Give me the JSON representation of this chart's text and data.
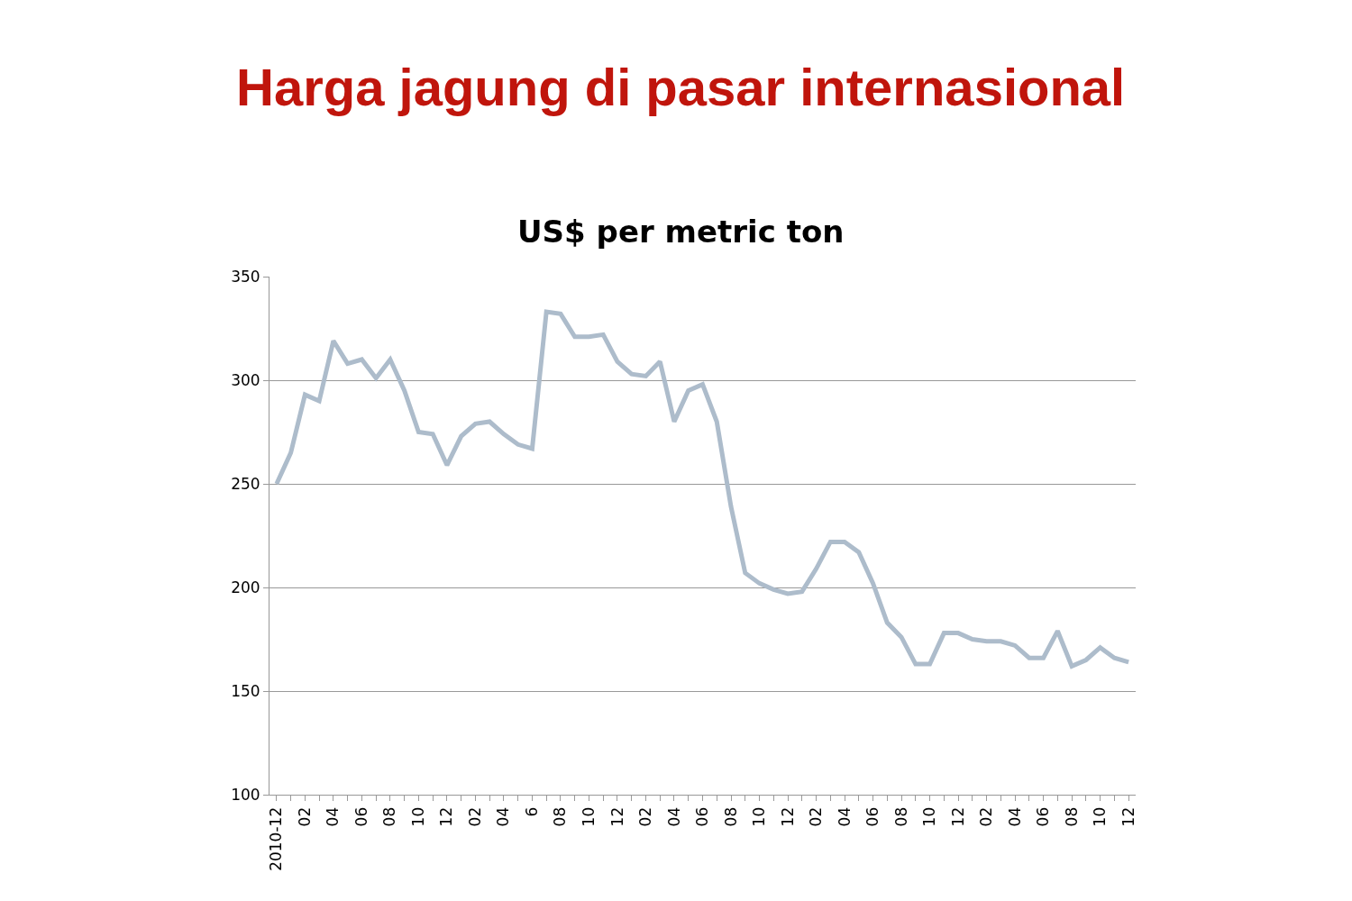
{
  "chart_data": {
    "type": "line",
    "title": "Harga jagung di pasar internasional",
    "subtitle": "US$ per metric ton",
    "categories": [
      "2010-12",
      null,
      "02",
      null,
      "04",
      null,
      "06",
      null,
      "08",
      null,
      "10",
      null,
      "12",
      null,
      "02",
      null,
      "04",
      null,
      "6",
      null,
      "08",
      null,
      "10",
      null,
      "12",
      null,
      "02",
      null,
      "04",
      null,
      "06",
      null,
      "08",
      null,
      "10",
      null,
      "12",
      null,
      "02",
      null,
      "04",
      null,
      "06",
      null,
      "08",
      null,
      "10",
      null,
      "12",
      null,
      "02",
      null,
      "04",
      null,
      "06",
      null,
      "08",
      null,
      "10",
      null,
      "12"
    ],
    "series": [
      {
        "color": "#adbccb",
        "values": [
          250,
          265,
          293,
          290,
          319,
          308,
          310,
          301,
          310,
          295,
          275,
          274,
          259,
          273,
          279,
          280,
          274,
          269,
          267,
          333,
          332,
          321,
          321,
          322,
          309,
          303,
          302,
          309,
          280,
          295,
          298,
          280,
          239,
          207,
          202,
          199,
          197,
          198,
          209,
          222,
          222,
          217,
          202,
          183,
          176,
          163,
          163,
          178,
          178,
          175,
          174,
          174,
          172,
          166,
          166,
          179,
          162,
          165,
          171,
          166,
          164
        ]
      }
    ],
    "ylim": [
      100,
      350
    ],
    "yticks": [
      100,
      150,
      200,
      250,
      300,
      350
    ],
    "grid": "y",
    "marker": "none",
    "line_style": "solid"
  }
}
